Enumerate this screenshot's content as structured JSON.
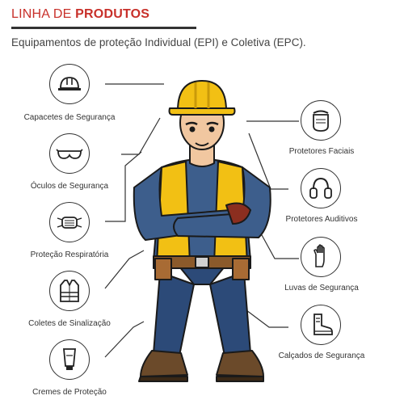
{
  "header": {
    "title_prefix": "LINHA DE ",
    "title_bold": "PRODUTOS",
    "subtitle": "Equipamentos de proteção Individual (EPI) e Coletiva (EPC)."
  },
  "products_left": [
    {
      "label": "Capacetes  de Segurança",
      "icon": "hard-hat-icon"
    },
    {
      "label": "Óculos de Segurança",
      "icon": "safety-goggles-icon"
    },
    {
      "label": "Proteção Respiratória",
      "icon": "respirator-mask-icon"
    },
    {
      "label": "Coletes de Sinalização",
      "icon": "safety-vest-icon"
    },
    {
      "label": "Cremes de Proteção",
      "icon": "cream-tube-icon"
    }
  ],
  "products_right": [
    {
      "label": "Protetores Faciais",
      "icon": "face-shield-icon"
    },
    {
      "label": "Protetores Auditivos",
      "icon": "earmuffs-icon"
    },
    {
      "label": "Luvas de Segurança",
      "icon": "glove-icon"
    },
    {
      "label": "Calçados de Segurança",
      "icon": "safety-boot-icon"
    }
  ],
  "illustration": {
    "icon": "construction-worker-illustration"
  },
  "colors": {
    "accent": "#c8302a",
    "helmet": "#f2c014",
    "vest": "#f2c014",
    "shirt": "#3d5e8c",
    "jeans": "#2c4a78"
  }
}
